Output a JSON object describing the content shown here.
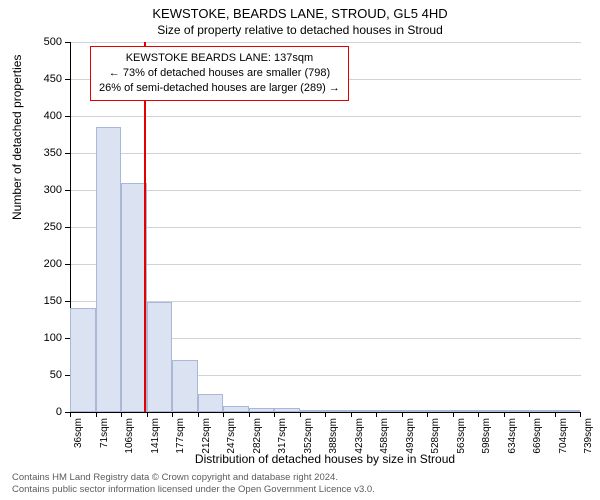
{
  "title": "KEWSTOKE, BEARDS LANE, STROUD, GL5 4HD",
  "subtitle": "Size of property relative to detached houses in Stroud",
  "y_label": "Number of detached properties",
  "x_label": "Distribution of detached houses by size in Stroud",
  "footer_line1": "Contains HM Land Registry data © Crown copyright and database right 2024.",
  "footer_line2": "Contains public sector information licensed under the Open Government Licence v3.0.",
  "callout": {
    "line1": "KEWSTOKE BEARDS LANE: 137sqm",
    "line2": "← 73% of detached houses are smaller (798)",
    "line3": "26% of semi-detached houses are larger (289) →"
  },
  "chart": {
    "type": "histogram",
    "ylim": [
      0,
      500
    ],
    "ytick_step": 50,
    "y_ticks": [
      0,
      50,
      100,
      150,
      200,
      250,
      300,
      350,
      400,
      450,
      500
    ],
    "x_ticks": [
      "36sqm",
      "71sqm",
      "106sqm",
      "141sqm",
      "177sqm",
      "212sqm",
      "247sqm",
      "282sqm",
      "317sqm",
      "352sqm",
      "388sqm",
      "423sqm",
      "458sqm",
      "493sqm",
      "528sqm",
      "563sqm",
      "598sqm",
      "634sqm",
      "669sqm",
      "704sqm",
      "739sqm"
    ],
    "values": [
      140,
      385,
      310,
      148,
      70,
      25,
      8,
      6,
      5,
      3,
      2,
      1,
      1,
      1,
      0,
      0,
      0,
      0,
      0,
      0
    ],
    "marker_x_bin_index": 2.9,
    "bar_fill": "#dbe3f3",
    "bar_border": "#a9b8d6",
    "grid_color": "#cfd2d6",
    "background_color": "#ffffff",
    "axis_color": "#000000",
    "marker_color": "#e20000",
    "title_fontsize": 13,
    "subtitle_fontsize": 12,
    "label_fontsize": 12,
    "tick_fontsize": 11,
    "xtick_fontsize": 10
  }
}
